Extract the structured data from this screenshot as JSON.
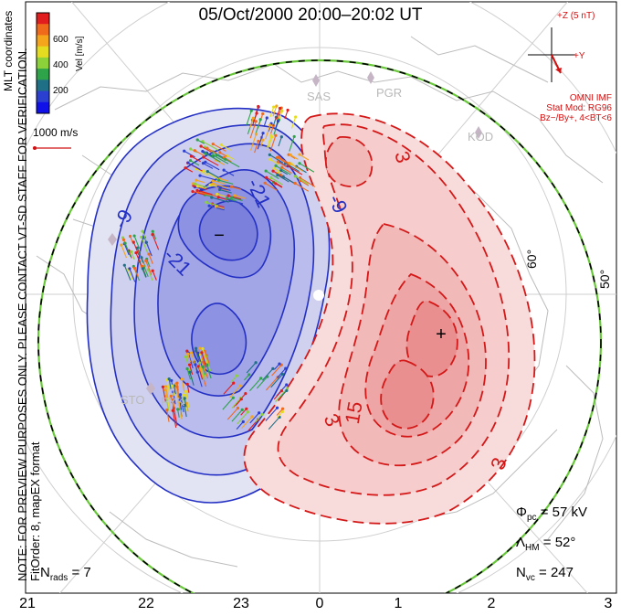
{
  "title": "05/Oct/2000 20:00–20:02 UT",
  "notes": {
    "line1": "NOTE: FOR PREVIEW PURPOSES ONLY. PLEASE CONTACT VT-SD STAFF FOR VERIFICATION.",
    "line2": "FitOrder: 8, mapEX format",
    "coords": "MLT coordinates"
  },
  "colorbar": {
    "title": "Vel [m/s]",
    "ticks": [
      "600",
      "400",
      "200"
    ],
    "colors": [
      "#e11d1d",
      "#f06a1c",
      "#f4a51c",
      "#e4dc20",
      "#8cd13a",
      "#2fa34a",
      "#1f6f86",
      "#2b3fd0",
      "#1010e8"
    ]
  },
  "scale_vector": {
    "label": "1000 m/s",
    "color": "#d01010"
  },
  "imf": {
    "header": "+Z (5 nT)",
    "axis_y": "+Y",
    "source": "OMNI IMF",
    "model": "Stat Mod: RG96",
    "condition": "Bz−/By+, 4<BT<6",
    "color": "#d41010"
  },
  "stats": {
    "phi_label": "Φ",
    "phi_sub": "pc",
    "phi_value": "= 57 kV",
    "lambda_label": "Λ",
    "lambda_sub": "HM",
    "lambda_value": "= 52°",
    "nvc_label": "N",
    "nvc_sub": "vc",
    "nvc_value": "= 247",
    "nrads_label": "N",
    "nrads_sub": "rads",
    "nrads_value": "= 7"
  },
  "mlt_ticks": [
    "21",
    "22",
    "23",
    "0",
    "1",
    "2",
    "3"
  ],
  "mlat_labels": [
    "60°",
    "50°"
  ],
  "sites": [
    "SAS",
    "PGR",
    "KOD",
    "STO",
    "PYK"
  ],
  "contour_labels": {
    "negative": [
      "-9",
      "-21",
      "-21",
      "-9"
    ],
    "positive": [
      "3",
      "3",
      "15",
      "3",
      "3"
    ]
  },
  "extrema_markers": {
    "min": "−",
    "max": "+"
  },
  "potential_colors": {
    "negative": "#2b2fd6",
    "positive": "#d61818"
  }
}
